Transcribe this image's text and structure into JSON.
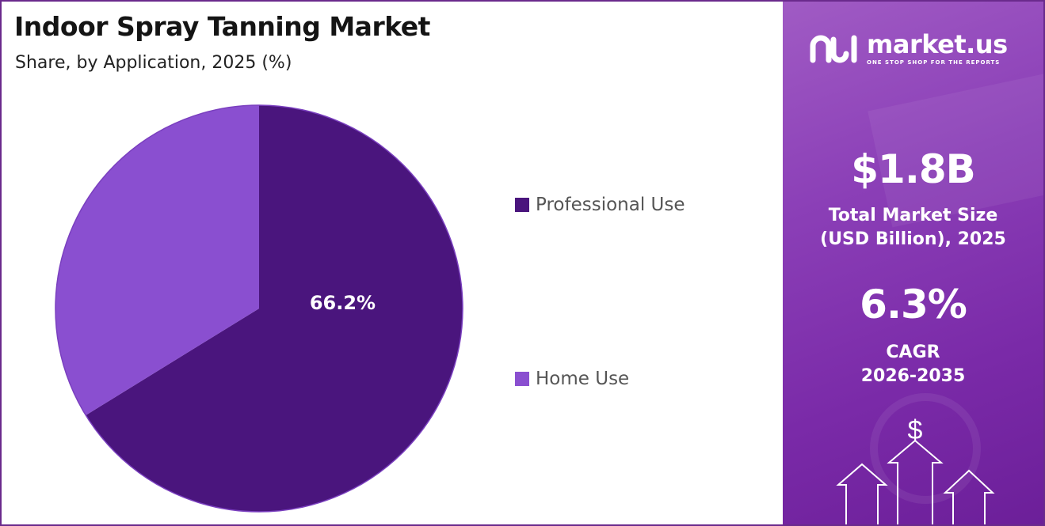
{
  "title": "Indoor Spray Tanning Market",
  "subtitle": "Share, by Application, 2025 (%)",
  "chart_data": {
    "type": "pie",
    "title": "Indoor Spray Tanning Market",
    "subtitle": "Share, by Application, 2025 (%)",
    "categories": [
      "Professional Use",
      "Home Use"
    ],
    "values": [
      66.2,
      33.8
    ],
    "data_labels": [
      "66.2%",
      ""
    ],
    "colors": [
      "#4a157d",
      "#8a4fd0"
    ],
    "legend_position": "right"
  },
  "sidebar": {
    "brand_name": "market.us",
    "brand_tagline": "ONE STOP SHOP FOR THE REPORTS",
    "market_size_value": "$1.8B",
    "market_size_label_line1": "Total Market Size",
    "market_size_label_line2": "(USD Billion), 2025",
    "cagr_value": "6.3%",
    "cagr_label_line1": "CAGR",
    "cagr_label_line2": "2026-2035",
    "dollar_symbol": "$"
  }
}
